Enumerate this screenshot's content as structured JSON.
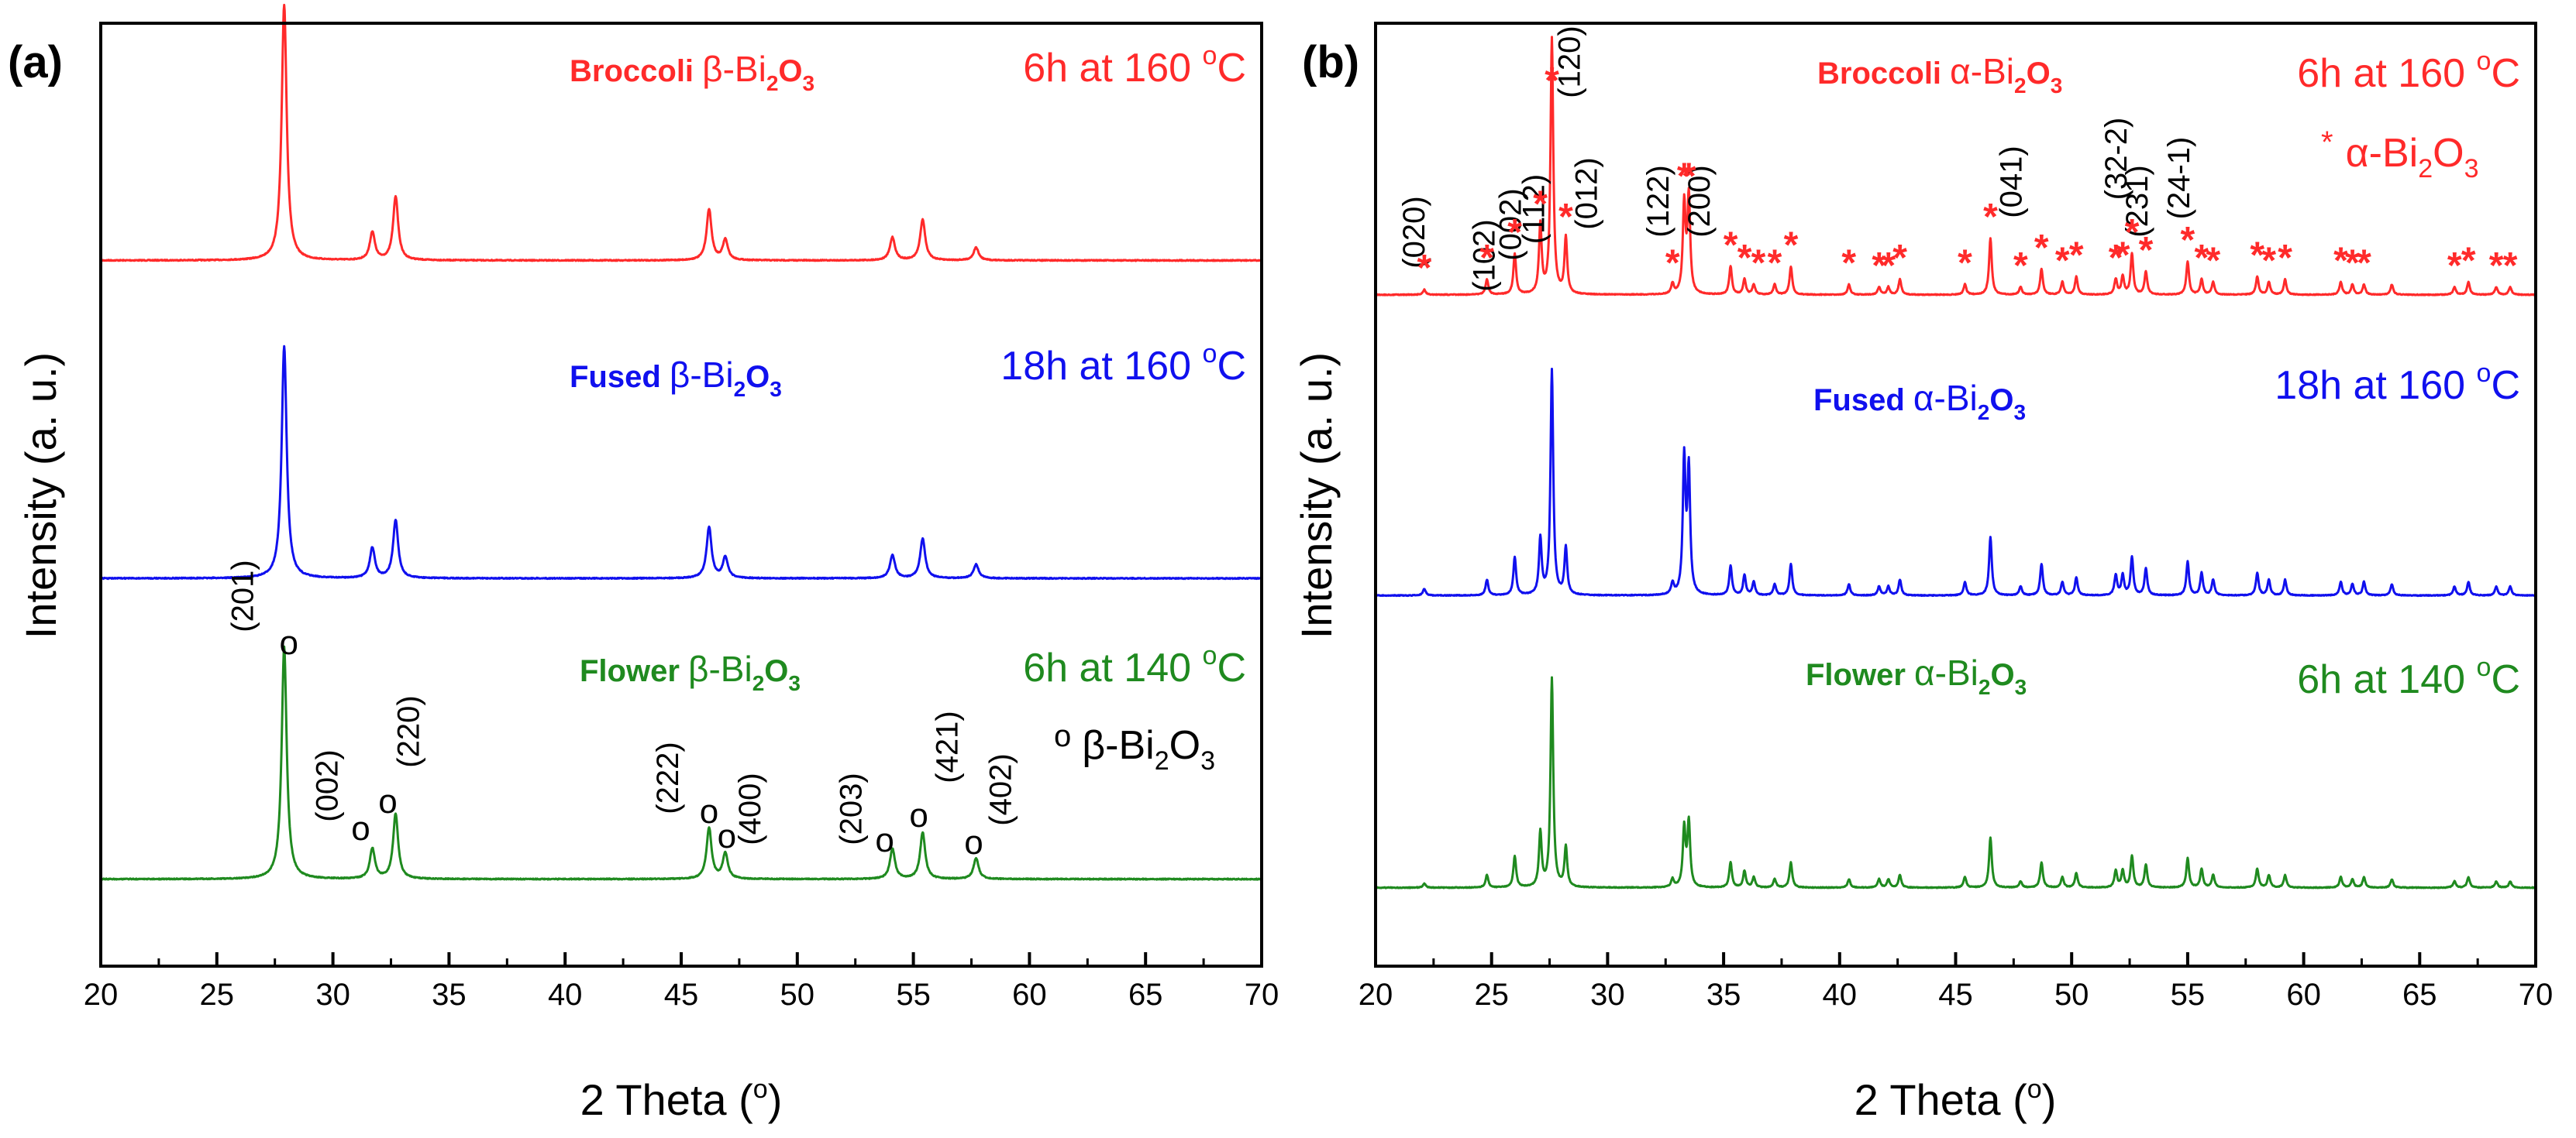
{
  "colors": {
    "broccoli": "#ff2a2a",
    "fused": "#1010ee",
    "flower": "#1f8a1f",
    "axis": "#000000"
  },
  "chart_data": [
    {
      "type": "line",
      "panel_label": "(a)",
      "xlabel": "2 Theta (",
      "xlabel_deg": "o",
      "xlabel_close": ")",
      "ylabel": "Intensity (a. u.)",
      "xlim": [
        20,
        70
      ],
      "xticks": [
        20,
        25,
        30,
        35,
        40,
        45,
        50,
        55,
        60,
        65,
        70
      ],
      "yticks_shown": false,
      "series": [
        {
          "key": "broccoli",
          "name_pre": "Broccoli ",
          "name_greek": "β-Bi",
          "name_sub1": "2",
          "name_mid": "O",
          "name_sub2": "3",
          "cond_pre": "6h at 160 ",
          "cond_sup": "o",
          "cond_post": "C",
          "baseline": 0.76,
          "peaks": [
            [
              27.9,
              100
            ],
            [
              31.7,
              11
            ],
            [
              32.7,
              25
            ],
            [
              46.2,
              20
            ],
            [
              46.9,
              8
            ],
            [
              54.1,
              9
            ],
            [
              55.4,
              16
            ],
            [
              57.7,
              5
            ]
          ]
        },
        {
          "key": "fused",
          "name_pre": "Fused ",
          "name_greek": "β-Bi",
          "name_sub1": "2",
          "name_mid": "O",
          "name_sub2": "3",
          "cond_pre": "18h at 160 ",
          "cond_sup": "o",
          "cond_post": "C",
          "baseline": 0.39,
          "peaks": [
            [
              27.9,
              100
            ],
            [
              31.7,
              13
            ],
            [
              32.7,
              25
            ],
            [
              46.2,
              22
            ],
            [
              46.9,
              9
            ],
            [
              54.1,
              10
            ],
            [
              55.4,
              17
            ],
            [
              57.7,
              6
            ]
          ]
        },
        {
          "key": "flower",
          "name_pre": "Flower ",
          "name_greek": "β-Bi",
          "name_sub1": "2",
          "name_mid": "O",
          "name_sub2": "3",
          "cond_pre": "6h at 140 ",
          "cond_sup": "o",
          "cond_post": "C",
          "baseline": 0.04,
          "peaks": [
            [
              27.9,
              100
            ],
            [
              31.7,
              13
            ],
            [
              32.7,
              28
            ],
            [
              46.2,
              22
            ],
            [
              46.9,
              11
            ],
            [
              54.1,
              13
            ],
            [
              55.4,
              20
            ],
            [
              57.7,
              9
            ]
          ]
        }
      ],
      "annotations": {
        "hkl": [
          {
            "label": "(201)",
            "x": 27.9
          },
          {
            "label": "(002)",
            "x": 31.7
          },
          {
            "label": "(220)",
            "x": 32.7
          },
          {
            "label": "(222)",
            "x": 46.2
          },
          {
            "label": "(400)",
            "x": 46.9
          },
          {
            "label": "(203)",
            "x": 54.1
          },
          {
            "label": "(421)",
            "x": 55.4
          },
          {
            "label": "(402)",
            "x": 57.7
          }
        ],
        "marker_legend_symbol": "o",
        "marker_legend_text": "β-Bi",
        "marker_legend_sub1": "2",
        "marker_legend_mid": "O",
        "marker_legend_sub2": "3"
      }
    },
    {
      "type": "line",
      "panel_label": "(b)",
      "xlabel": "2 Theta (",
      "xlabel_deg": "o",
      "xlabel_close": ")",
      "ylabel": "Intensity (a. u.)",
      "xlim": [
        20,
        70
      ],
      "xticks": [
        20,
        25,
        30,
        35,
        40,
        45,
        50,
        55,
        60,
        65,
        70
      ],
      "yticks_shown": false,
      "series": [
        {
          "key": "broccoli",
          "name_pre": "Broccoli ",
          "name_greek": "α-Bi",
          "name_sub1": "2",
          "name_mid": "O",
          "name_sub2": "3",
          "cond_pre": "6h at 160 ",
          "cond_sup": "o",
          "cond_post": "C",
          "baseline": 0.72,
          "peaks": [
            [
              22.1,
              2
            ],
            [
              24.8,
              6
            ],
            [
              26.0,
              16
            ],
            [
              27.1,
              27
            ],
            [
              27.6,
              100
            ],
            [
              28.2,
              22
            ],
            [
              32.8,
              4
            ],
            [
              33.3,
              35
            ],
            [
              33.5,
              38
            ],
            [
              35.3,
              11
            ],
            [
              35.9,
              6
            ],
            [
              36.3,
              4
            ],
            [
              37.2,
              4
            ],
            [
              37.9,
              11
            ],
            [
              40.4,
              4
            ],
            [
              41.7,
              3
            ],
            [
              42.1,
              3
            ],
            [
              42.6,
              6
            ],
            [
              45.4,
              4
            ],
            [
              46.5,
              22
            ],
            [
              47.8,
              3
            ],
            [
              48.7,
              10
            ],
            [
              49.6,
              5
            ],
            [
              50.2,
              7
            ],
            [
              51.9,
              6
            ],
            [
              52.2,
              7
            ],
            [
              52.6,
              16
            ],
            [
              53.2,
              9
            ],
            [
              55.0,
              13
            ],
            [
              55.6,
              6
            ],
            [
              56.1,
              5
            ],
            [
              58.0,
              7
            ],
            [
              58.5,
              5
            ],
            [
              59.2,
              6
            ],
            [
              61.6,
              5
            ],
            [
              62.1,
              4
            ],
            [
              62.6,
              4
            ],
            [
              63.8,
              4
            ],
            [
              66.5,
              3
            ],
            [
              67.1,
              5
            ],
            [
              68.3,
              3
            ],
            [
              68.9,
              3
            ]
          ]
        },
        {
          "key": "fused",
          "name_pre": "Fused ",
          "name_greek": "α-Bi",
          "name_sub1": "2",
          "name_mid": "O",
          "name_sub2": "3",
          "cond_pre": "18h at 160 ",
          "cond_sup": "o",
          "cond_post": "C",
          "baseline": 0.37,
          "peaks": [
            [
              22.1,
              3
            ],
            [
              24.8,
              7
            ],
            [
              26.0,
              17
            ],
            [
              27.1,
              25
            ],
            [
              27.6,
              100
            ],
            [
              28.2,
              21
            ],
            [
              32.8,
              5
            ],
            [
              33.3,
              60
            ],
            [
              33.5,
              55
            ],
            [
              35.3,
              13
            ],
            [
              35.9,
              9
            ],
            [
              36.3,
              6
            ],
            [
              37.2,
              5
            ],
            [
              37.9,
              14
            ],
            [
              40.4,
              5
            ],
            [
              41.7,
              4
            ],
            [
              42.1,
              4
            ],
            [
              42.6,
              7
            ],
            [
              45.4,
              6
            ],
            [
              46.5,
              26
            ],
            [
              47.8,
              4
            ],
            [
              48.7,
              14
            ],
            [
              49.6,
              6
            ],
            [
              50.2,
              8
            ],
            [
              51.9,
              9
            ],
            [
              52.2,
              9
            ],
            [
              52.6,
              17
            ],
            [
              53.2,
              12
            ],
            [
              55.0,
              15
            ],
            [
              55.6,
              10
            ],
            [
              56.1,
              7
            ],
            [
              58.0,
              10
            ],
            [
              58.5,
              7
            ],
            [
              59.2,
              7
            ],
            [
              61.6,
              6
            ],
            [
              62.1,
              5
            ],
            [
              62.6,
              6
            ],
            [
              63.8,
              5
            ],
            [
              66.5,
              4
            ],
            [
              67.1,
              6
            ],
            [
              68.3,
              4
            ],
            [
              68.9,
              4
            ]
          ]
        },
        {
          "key": "flower",
          "name_pre": "Flower ",
          "name_greek": "α-Bi",
          "name_sub1": "2",
          "name_mid": "O",
          "name_sub2": "3",
          "cond_pre": "6h at 140 ",
          "cond_sup": "o",
          "cond_post": "C",
          "baseline": 0.03,
          "peaks": [
            [
              22.1,
              2
            ],
            [
              24.8,
              6
            ],
            [
              26.0,
              15
            ],
            [
              27.1,
              26
            ],
            [
              27.6,
              100
            ],
            [
              28.2,
              19
            ],
            [
              32.8,
              4
            ],
            [
              33.3,
              28
            ],
            [
              33.5,
              31
            ],
            [
              35.3,
              12
            ],
            [
              35.9,
              8
            ],
            [
              36.3,
              5
            ],
            [
              37.2,
              4
            ],
            [
              37.9,
              12
            ],
            [
              40.4,
              4
            ],
            [
              41.7,
              4
            ],
            [
              42.1,
              4
            ],
            [
              42.6,
              6
            ],
            [
              45.4,
              5
            ],
            [
              46.5,
              24
            ],
            [
              47.8,
              3
            ],
            [
              48.7,
              12
            ],
            [
              49.6,
              5
            ],
            [
              50.2,
              7
            ],
            [
              51.9,
              8
            ],
            [
              52.2,
              8
            ],
            [
              52.6,
              15
            ],
            [
              53.2,
              11
            ],
            [
              55.0,
              14
            ],
            [
              55.6,
              9
            ],
            [
              56.1,
              6
            ],
            [
              58.0,
              9
            ],
            [
              58.5,
              6
            ],
            [
              59.2,
              6
            ],
            [
              61.6,
              5
            ],
            [
              62.1,
              4
            ],
            [
              62.6,
              5
            ],
            [
              63.8,
              4
            ],
            [
              66.5,
              3
            ],
            [
              67.1,
              5
            ],
            [
              68.3,
              3
            ],
            [
              68.9,
              3
            ]
          ]
        }
      ],
      "annotations": {
        "hkl": [
          {
            "label": "(020)",
            "x": 22.1
          },
          {
            "label": "(102)",
            "x": 24.8
          },
          {
            "label": "(002)",
            "x": 26.0
          },
          {
            "label": "(112)",
            "x": 27.1
          },
          {
            "label": "(120)",
            "x": 27.6
          },
          {
            "label": "(012)",
            "x": 28.2
          },
          {
            "label": "(122)",
            "x": 32.8
          },
          {
            "label": "(200)",
            "x": 33.4
          },
          {
            "label": "(041)",
            "x": 46.5
          },
          {
            "label": "(32-2)",
            "x": 52.2
          },
          {
            "label": "(231)",
            "x": 52.6
          },
          {
            "label": "(24-1)",
            "x": 55.0
          }
        ],
        "star_positions": [
          22.1,
          24.8,
          26.0,
          27.1,
          27.6,
          28.2,
          32.8,
          33.3,
          33.5,
          35.3,
          35.9,
          36.5,
          37.2,
          37.9,
          40.4,
          41.7,
          42.1,
          42.6,
          45.4,
          46.5,
          47.8,
          48.7,
          49.6,
          50.2,
          51.9,
          52.2,
          52.6,
          53.2,
          55.0,
          55.6,
          56.1,
          58.0,
          58.5,
          59.2,
          61.6,
          62.1,
          62.6,
          66.5,
          67.1,
          68.3,
          68.9
        ],
        "marker_legend_symbol": "*",
        "marker_legend_text": "α-Bi",
        "marker_legend_sub1": "2",
        "marker_legend_mid": "O",
        "marker_legend_sub2": "3"
      }
    }
  ]
}
